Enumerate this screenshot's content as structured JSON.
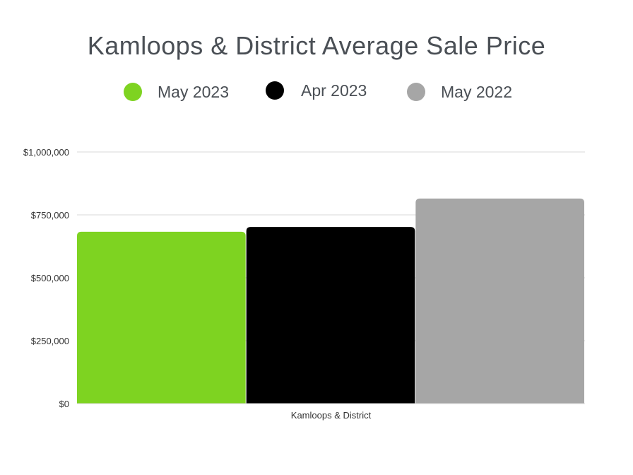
{
  "chart_data": {
    "type": "bar",
    "title": "Kamloops & District Average Sale Price",
    "categories": [
      "Kamloops & District"
    ],
    "series": [
      {
        "name": "May 2023",
        "color": "#7ed321",
        "values": [
          683000
        ]
      },
      {
        "name": "Apr 2023",
        "color": "#000000",
        "values": [
          702000
        ]
      },
      {
        "name": "May 2022",
        "color": "#a6a6a6",
        "values": [
          815000
        ]
      }
    ],
    "ylim": [
      0,
      1000000
    ],
    "yticks": [
      {
        "value": 0,
        "label": "$0"
      },
      {
        "value": 250000,
        "label": "$250,000"
      },
      {
        "value": 500000,
        "label": "$500,000"
      },
      {
        "value": 750000,
        "label": "$750,000"
      },
      {
        "value": 1000000,
        "label": "$1,000,000"
      }
    ],
    "xlabel": "",
    "ylabel": "",
    "grid": true,
    "legend_position": "top"
  }
}
